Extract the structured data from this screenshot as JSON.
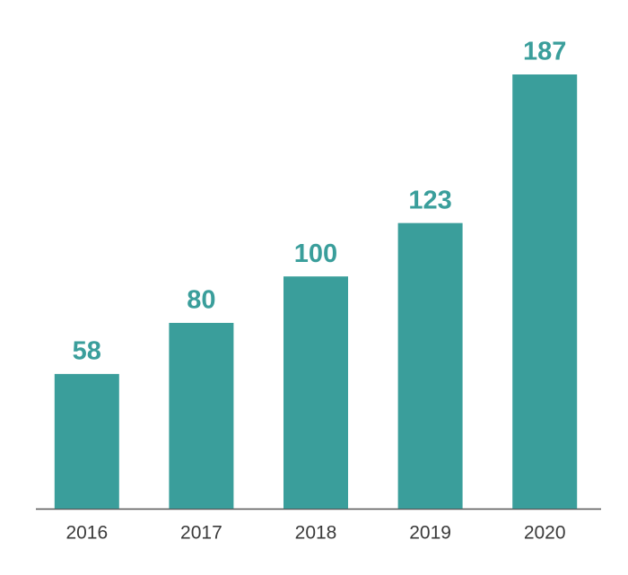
{
  "chart_data": {
    "type": "bar",
    "categories": [
      "2016",
      "2017",
      "2018",
      "2019",
      "2020"
    ],
    "values": [
      58,
      80,
      100,
      123,
      187
    ],
    "color": "#3a9e9b",
    "label_color": "#3a9e9b"
  }
}
